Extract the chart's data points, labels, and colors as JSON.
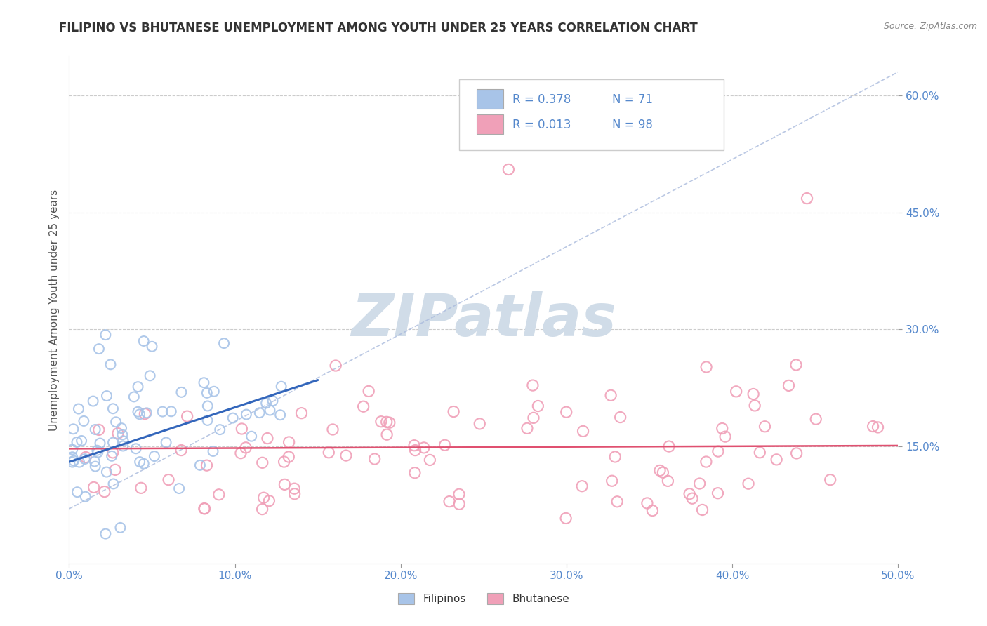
{
  "title": "FILIPINO VS BHUTANESE UNEMPLOYMENT AMONG YOUTH UNDER 25 YEARS CORRELATION CHART",
  "source": "Source: ZipAtlas.com",
  "ylabel": "Unemployment Among Youth under 25 years",
  "xlim": [
    0.0,
    0.5
  ],
  "ylim": [
    0.0,
    0.65
  ],
  "xticks": [
    0.0,
    0.1,
    0.2,
    0.3,
    0.4,
    0.5
  ],
  "yticks": [
    0.15,
    0.3,
    0.45,
    0.6
  ],
  "xtick_labels": [
    "0.0%",
    "10.0%",
    "20.0%",
    "30.0%",
    "40.0%",
    "50.0%"
  ],
  "ytick_labels": [
    "15.0%",
    "30.0%",
    "45.0%",
    "60.0%"
  ],
  "legend_r1": "R = 0.378",
  "legend_n1": "N = 71",
  "legend_r2": "R = 0.013",
  "legend_n2": "N = 98",
  "filipino_color": "#a8c4e8",
  "bhutanese_color": "#f0a0b8",
  "filipino_line_color": "#3366bb",
  "bhutanese_line_color": "#e05070",
  "background_color": "#ffffff",
  "grid_color": "#cccccc",
  "title_color": "#333333",
  "watermark_color": "#d0dce8",
  "tick_color": "#5588cc",
  "source_color": "#888888"
}
